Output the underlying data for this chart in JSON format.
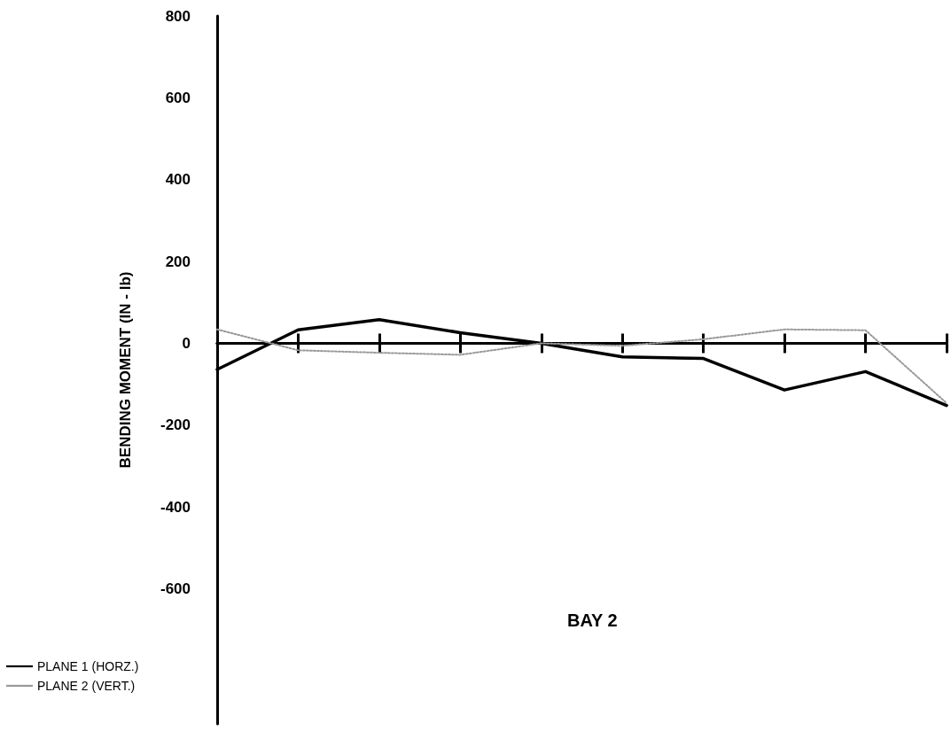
{
  "chart_data": {
    "type": "line",
    "ylabel": "BENDING MOMENT (IN - lb)",
    "annotations": [
      "BAY 2"
    ],
    "categories": [
      null,
      null,
      null,
      null,
      null,
      null,
      null,
      null,
      null,
      null
    ],
    "series": [
      {
        "name": "PLANE 1 (HORZ.)",
        "color": "#000000",
        "line_style": "solid",
        "values": [
          -64,
          33,
          58,
          26,
          0,
          -33,
          -37,
          -114,
          -69,
          -152
        ]
      },
      {
        "name": "PLANE 2 (VERT.)",
        "color": "#999999",
        "line_style": "dotted",
        "values": [
          34,
          -17,
          -23,
          -28,
          0,
          -6,
          10,
          34,
          32,
          -146
        ]
      }
    ],
    "ylim": [
      -930,
      800
    ],
    "yticks": [
      800,
      600,
      400,
      200,
      0,
      -200,
      -400,
      -600
    ],
    "legend": "left",
    "marker": "none"
  }
}
